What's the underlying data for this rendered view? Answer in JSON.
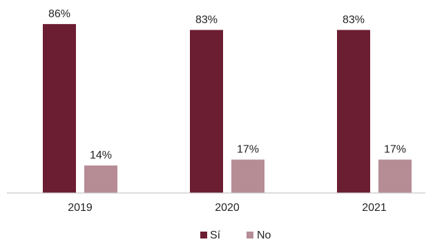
{
  "chart_data": {
    "type": "bar",
    "categories": [
      "2019",
      "2020",
      "2021"
    ],
    "series": [
      {
        "name": "Sí",
        "color": "#6b1d32",
        "values": [
          86,
          83,
          83
        ],
        "labels": [
          "86%",
          "83%",
          "83%"
        ]
      },
      {
        "name": "No",
        "color": "#b68c95",
        "values": [
          14,
          17,
          17
        ],
        "labels": [
          "14%",
          "17%",
          "17%"
        ]
      }
    ],
    "ylim": [
      0,
      100
    ],
    "unit": "%",
    "grid": false,
    "legend_position": "bottom-center",
    "title": "",
    "xlabel": "",
    "ylabel": ""
  }
}
